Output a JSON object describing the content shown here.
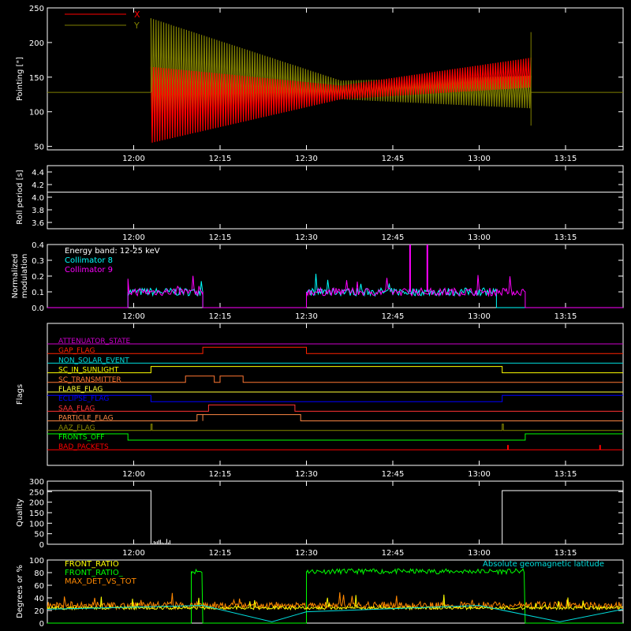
{
  "chart_data": [
    {
      "id": "pointing",
      "type": "line",
      "ylabel": "Pointing [\"]",
      "ylim": [
        45,
        250
      ],
      "yticks": [
        50,
        100,
        150,
        200,
        250
      ],
      "xticks": [
        "12:00",
        "12:15",
        "12:30",
        "12:45",
        "13:00",
        "13:15"
      ],
      "legend_position": "top-left",
      "series": [
        {
          "name": "X",
          "color": "#ff0000",
          "baseline": 128,
          "start": "12:03",
          "stop": "13:09",
          "envelope_start": [
            55,
            165
          ],
          "envelope_mid": [
            118,
            138
          ],
          "envelope_end": [
            135,
            178
          ]
        },
        {
          "name": "Y",
          "color": "#808000",
          "baseline": 128,
          "start": "12:03",
          "stop": "13:09",
          "envelope_start": [
            95,
            235
          ],
          "envelope_mid": [
            118,
            145
          ],
          "envelope_end": [
            105,
            152
          ]
        }
      ]
    },
    {
      "id": "roll",
      "type": "line",
      "ylabel": "Roll period [s]",
      "ylim": [
        3.5,
        4.5
      ],
      "yticks": [
        "3.6",
        "3.8",
        "4.0",
        "4.2",
        "4.4"
      ],
      "xticks": [
        "12:00",
        "12:15",
        "12:30",
        "12:45",
        "13:00",
        "13:15"
      ],
      "series": [
        {
          "value": 4.08,
          "color": "#ffffff"
        }
      ]
    },
    {
      "id": "modulation",
      "type": "line",
      "ylabel": "Normalized modulation",
      "ylim": [
        0,
        0.4
      ],
      "yticks": [
        "0.0",
        "0.1",
        "0.2",
        "0.3",
        "0.4"
      ],
      "xticks": [
        "12:00",
        "12:15",
        "12:30",
        "12:45",
        "13:00",
        "13:15"
      ],
      "annotation": "Energy band: 12-25 keV",
      "series": [
        {
          "name": "Collimator 8",
          "color": "#00ffff",
          "intervals": [
            [
              "11:59",
              "12:12"
            ],
            [
              "12:30",
              "13:03"
            ]
          ],
          "level": 0.1
        },
        {
          "name": "Collimator 9",
          "color": "#ff00ff",
          "intervals": [
            [
              "11:59",
              "12:12"
            ],
            [
              "12:30",
              "13:08"
            ]
          ],
          "level": 0.1
        }
      ]
    },
    {
      "id": "flags",
      "type": "line",
      "ylabel": "Flags",
      "xticks": [
        "12:00",
        "12:15",
        "12:30",
        "12:45",
        "13:00",
        "13:15"
      ],
      "series": [
        {
          "name": "ATTENUATOR_STATE",
          "color": "#cc00cc",
          "high": []
        },
        {
          "name": "GAP_FLAG",
          "color": "#ff2200",
          "high": [
            [
              "12:12",
              "12:30"
            ]
          ]
        },
        {
          "name": "NON_SOLAR_EVENT",
          "color": "#00dddd",
          "high": []
        },
        {
          "name": "SC_IN_SUNLIGHT",
          "color": "#ffff00",
          "high": [
            [
              "12:03",
              "13:04"
            ]
          ]
        },
        {
          "name": "SC_TRANSMITTER",
          "color": "#ff7733",
          "high": [
            [
              "12:09",
              "12:14"
            ],
            [
              "12:15",
              "12:19"
            ]
          ]
        },
        {
          "name": "FLARE_FLAG",
          "color": "#ffff33",
          "high": []
        },
        {
          "name": "ECLIPSE_FLAG",
          "color": "#0000ff",
          "low": [
            [
              "12:03",
              "13:04"
            ]
          ]
        },
        {
          "name": "SAA_FLAG",
          "color": "#ff3333",
          "high": [
            [
              "12:13",
              "12:28"
            ]
          ]
        },
        {
          "name": "PARTICLE_FLAG",
          "color": "#ff8844",
          "high": [
            [
              "12:11",
              "12:12"
            ],
            [
              "12:12",
              "12:29"
            ]
          ]
        },
        {
          "name": "AAZ_FLAG",
          "color": "#888800",
          "high": [
            [
              "12:03",
              "12:03"
            ],
            [
              "13:04",
              "13:04"
            ]
          ]
        },
        {
          "name": "FRONTS_OFF",
          "color": "#00ff00",
          "low": [
            [
              "11:59",
              "13:08"
            ]
          ]
        },
        {
          "name": "BAD_PACKETS",
          "color": "#ff0000",
          "spikes": [
            "13:05",
            "13:21"
          ]
        }
      ]
    },
    {
      "id": "quality",
      "type": "line",
      "ylabel": "Quality",
      "ylim": [
        0,
        300
      ],
      "yticks": [
        0,
        50,
        100,
        150,
        200,
        250,
        300
      ],
      "xticks": [
        "12:00",
        "12:15",
        "12:30",
        "12:45",
        "13:00",
        "13:15"
      ],
      "series": [
        {
          "color": "#ffffff",
          "high_value": 255,
          "high_intervals": [
            [
              "11:45",
              "12:03"
            ],
            [
              "13:04",
              "13:25"
            ]
          ]
        }
      ]
    },
    {
      "id": "latitude",
      "type": "line",
      "ylabel": "Degrees or %",
      "ylim": [
        0,
        100
      ],
      "yticks": [
        0,
        20,
        40,
        60,
        80,
        100
      ],
      "xticks": [
        "12:00",
        "12:15",
        "12:30",
        "12:45",
        "13:00",
        "13:15"
      ],
      "series": [
        {
          "name": "FRONT_RATIO",
          "color": "#ffff00",
          "level": 24
        },
        {
          "name": "FRONT_RATIO_",
          "color": "#00ff00",
          "level": 82,
          "intervals": [
            [
              "12:10",
              "12:12"
            ],
            [
              "12:30",
              "13:08"
            ]
          ]
        },
        {
          "name": "MAX_DET_VS_TOT",
          "color": "#ff8800",
          "level": 28
        },
        {
          "name": "Absolute geomagnetic latitude",
          "color": "#00dddd",
          "points": [
            [
              "11:45",
              22
            ],
            [
              "12:12",
              28
            ],
            [
              "12:24",
              2
            ],
            [
              "12:30",
              18
            ],
            [
              "13:00",
              28
            ],
            [
              "13:14",
              2
            ],
            [
              "13:25",
              22
            ]
          ]
        }
      ]
    }
  ]
}
